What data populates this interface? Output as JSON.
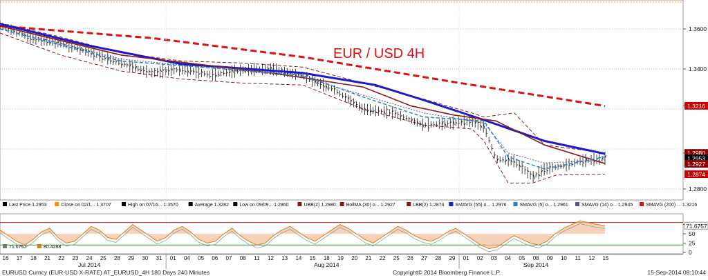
{
  "chart_data": {
    "type": "line",
    "title": "EUR / USD 4H",
    "price_panel": {
      "ylim": [
        1.2745,
        1.3745
      ],
      "right_axis_ticks": [
        "1.3600",
        "1.3400",
        "1.3216",
        "1.2980",
        "1.2953",
        "1.2927",
        "1.2874",
        "1.2800"
      ],
      "highlighted_labels": [
        {
          "label": "1.3216",
          "value": 1.3216,
          "color": "#cc0000"
        },
        {
          "label": "1.2980",
          "value": 1.298,
          "color": "#8b0000"
        },
        {
          "label": "1.2953",
          "value": 1.2953,
          "color": "#000000"
        },
        {
          "label": "1.2927",
          "value": 1.2927,
          "color": "#8b0000"
        },
        {
          "label": "1.2874",
          "value": 1.2874,
          "color": "#cc0000"
        }
      ],
      "gridlines": [
        1.36,
        1.34,
        1.32,
        1.3,
        1.28
      ],
      "top_line": 1.3735,
      "series": [
        {
          "name": "SMAVG (200)",
          "color": "#dd1111",
          "dash": "dashed",
          "points": [
            [
              0,
              1.3615
            ],
            [
              0.25,
              1.3555
            ],
            [
              0.5,
              1.346
            ],
            [
              0.75,
              1.3335
            ],
            [
              1,
              1.3215
            ]
          ]
        },
        {
          "name": "SMAVG (55)",
          "color": "#1a1acc",
          "dash": "solid",
          "points": [
            [
              0,
              1.3625
            ],
            [
              0.15,
              1.3515
            ],
            [
              0.3,
              1.3425
            ],
            [
              0.5,
              1.338
            ],
            [
              0.62,
              1.332
            ],
            [
              0.7,
              1.3245
            ],
            [
              0.8,
              1.3145
            ],
            [
              0.9,
              1.304
            ],
            [
              1,
              1.2976
            ]
          ]
        },
        {
          "name": "BollMA (30)",
          "color": "#8b1a1a",
          "dash": "solid",
          "points": [
            [
              0,
              1.3615
            ],
            [
              0.2,
              1.347
            ],
            [
              0.45,
              1.338
            ],
            [
              0.6,
              1.331
            ],
            [
              0.68,
              1.3215
            ],
            [
              0.75,
              1.317
            ],
            [
              0.82,
              1.314
            ],
            [
              0.9,
              1.302
            ],
            [
              1,
              1.2927
            ]
          ]
        },
        {
          "name": "SMAVG (14)",
          "color": "#555577",
          "dash": "dotted",
          "points": [
            [
              0,
              1.3605
            ],
            [
              0.2,
              1.345
            ],
            [
              0.5,
              1.336
            ],
            [
              0.6,
              1.327
            ],
            [
              0.7,
              1.318
            ],
            [
              0.8,
              1.313
            ],
            [
              0.84,
              1.298
            ],
            [
              0.9,
              1.293
            ],
            [
              1,
              1.2945
            ]
          ]
        },
        {
          "name": "SMAVG (5)",
          "color": "#2a7fc9",
          "dash": "dashed",
          "points": [
            [
              0,
              1.36
            ],
            [
              0.2,
              1.344
            ],
            [
              0.5,
              1.337
            ],
            [
              0.6,
              1.326
            ],
            [
              0.7,
              1.316
            ],
            [
              0.8,
              1.314
            ],
            [
              0.84,
              1.296
            ],
            [
              0.9,
              1.29
            ],
            [
              1,
              1.2961
            ]
          ]
        }
      ],
      "bands": {
        "color": "#8b1a1a",
        "upper": [
          [
            0,
            1.363
          ],
          [
            0.1,
            1.356
          ],
          [
            0.2,
            1.348
          ],
          [
            0.3,
            1.344
          ],
          [
            0.4,
            1.343
          ],
          [
            0.5,
            1.341
          ],
          [
            0.6,
            1.333
          ],
          [
            0.7,
            1.325
          ],
          [
            0.78,
            1.318
          ],
          [
            0.8,
            1.316
          ],
          [
            0.85,
            1.318
          ],
          [
            0.9,
            1.302
          ],
          [
            1,
            1.298
          ]
        ],
        "lower": [
          [
            0,
            1.358
          ],
          [
            0.1,
            1.347
          ],
          [
            0.2,
            1.339
          ],
          [
            0.3,
            1.335
          ],
          [
            0.4,
            1.333
          ],
          [
            0.5,
            1.332
          ],
          [
            0.6,
            1.32
          ],
          [
            0.7,
            1.312
          ],
          [
            0.78,
            1.31
          ],
          [
            0.8,
            1.304
          ],
          [
            0.84,
            1.283
          ],
          [
            0.88,
            1.283
          ],
          [
            0.92,
            1.287
          ],
          [
            1,
            1.2874
          ]
        ]
      },
      "price_path": [
        [
          0,
          1.362
        ],
        [
          0.05,
          1.3555
        ],
        [
          0.1,
          1.353
        ],
        [
          0.15,
          1.348
        ],
        [
          0.2,
          1.343
        ],
        [
          0.25,
          1.338
        ],
        [
          0.3,
          1.34
        ],
        [
          0.35,
          1.337
        ],
        [
          0.4,
          1.3395
        ],
        [
          0.45,
          1.34
        ],
        [
          0.5,
          1.3365
        ],
        [
          0.55,
          1.33
        ],
        [
          0.6,
          1.32
        ],
        [
          0.65,
          1.318
        ],
        [
          0.7,
          1.312
        ],
        [
          0.75,
          1.313
        ],
        [
          0.78,
          1.314
        ],
        [
          0.8,
          1.311
        ],
        [
          0.82,
          1.295
        ],
        [
          0.85,
          1.294
        ],
        [
          0.88,
          1.286
        ],
        [
          0.9,
          1.29
        ],
        [
          0.93,
          1.2915
        ],
        [
          0.96,
          1.294
        ],
        [
          1,
          1.2953
        ]
      ]
    },
    "legend": [
      {
        "label": "Last Price",
        "value": "1.2953",
        "swatch": "#000000"
      },
      {
        "label": "Close on 02/1...",
        "value": "1.3707",
        "swatch": "#ff8c00"
      },
      {
        "label": "High on 07/16...",
        "value": "1.3570",
        "swatch": "#000000"
      },
      {
        "label": "Average",
        "value": "1.3282",
        "swatch": "#000000"
      },
      {
        "label": "Low on 09/09...",
        "value": "1.2860",
        "swatch": "#000000"
      },
      {
        "label": "UBB(2)",
        "value": "1.2980",
        "swatch": "#8b1a1a"
      },
      {
        "label": "BollMA (30) o...",
        "value": "1.2927",
        "swatch": "#8b1a1a"
      },
      {
        "label": "LBB(2)",
        "value": "1.2874",
        "swatch": "#8b1a1a"
      },
      {
        "label": "SMAVG (55) o...",
        "value": "1.2976",
        "swatch": "#1a1acc"
      },
      {
        "label": "SMAVG (5) o...",
        "value": "1.2961",
        "swatch": "#2a7fc9"
      },
      {
        "label": "SMAVG (14) o...",
        "value": "1.2945",
        "swatch": "#555577"
      },
      {
        "label": "SMAVG (200) ...",
        "value": "1.3216",
        "swatch": "#dd1111"
      }
    ],
    "oscillator_panel": {
      "ylim": [
        0,
        100
      ],
      "right_axis_ticks": [
        "75",
        "71.6757",
        "50",
        "25",
        "0"
      ],
      "overbought": 80.4288,
      "oversold": 20,
      "last_value": 71.6757,
      "legend": [
        {
          "label": "71.6757",
          "swatch": "#777777"
        },
        {
          "label": "80.4288",
          "swatch": "#d08020"
        }
      ],
      "series_values": [
        60,
        45,
        30,
        20,
        35,
        55,
        65,
        40,
        25,
        30,
        50,
        70,
        60,
        40,
        35,
        55,
        75,
        60,
        45,
        30,
        40,
        60,
        70,
        55,
        35,
        25,
        30,
        50,
        65,
        45,
        30,
        20,
        25,
        45,
        60,
        70,
        55,
        40,
        30,
        45,
        60,
        75,
        65,
        50,
        35,
        25,
        40,
        55,
        70,
        60,
        45,
        35,
        30,
        40,
        55,
        65,
        50,
        35,
        20,
        10,
        15,
        30,
        45,
        35,
        25,
        20,
        30,
        50,
        65,
        75,
        85,
        80,
        75,
        72
      ]
    },
    "x_axis": {
      "day_labels": [
        "16",
        "17",
        "18",
        "21",
        "22",
        "23",
        "24",
        "25",
        "28",
        "29",
        "30",
        "31",
        "01",
        "04",
        "05",
        "06",
        "07",
        "08",
        "11",
        "12",
        "13",
        "14",
        "15",
        "18",
        "19",
        "20",
        "21",
        "22",
        "25",
        "26",
        "27",
        "28",
        "29",
        "01",
        "02",
        "03",
        "04",
        "05",
        "08",
        "09",
        "10",
        "11",
        "12",
        "15"
      ],
      "month_labels": [
        {
          "label": "Jul 2014",
          "index": 6
        },
        {
          "label": "Aug 2014",
          "index": 23
        },
        {
          "label": "Sep 2014",
          "index": 38
        }
      ],
      "month_dividers": [
        11.5,
        32.5
      ]
    }
  },
  "footer": {
    "left": "EURUSD Curncy (EUR-USD X-RATE) AT_EURUSD_4H 180 Days 240 Minutes",
    "center": "Copyright© 2014 Bloomberg Finance L.P.",
    "right": "15-Sep-2014 08:10:44"
  }
}
